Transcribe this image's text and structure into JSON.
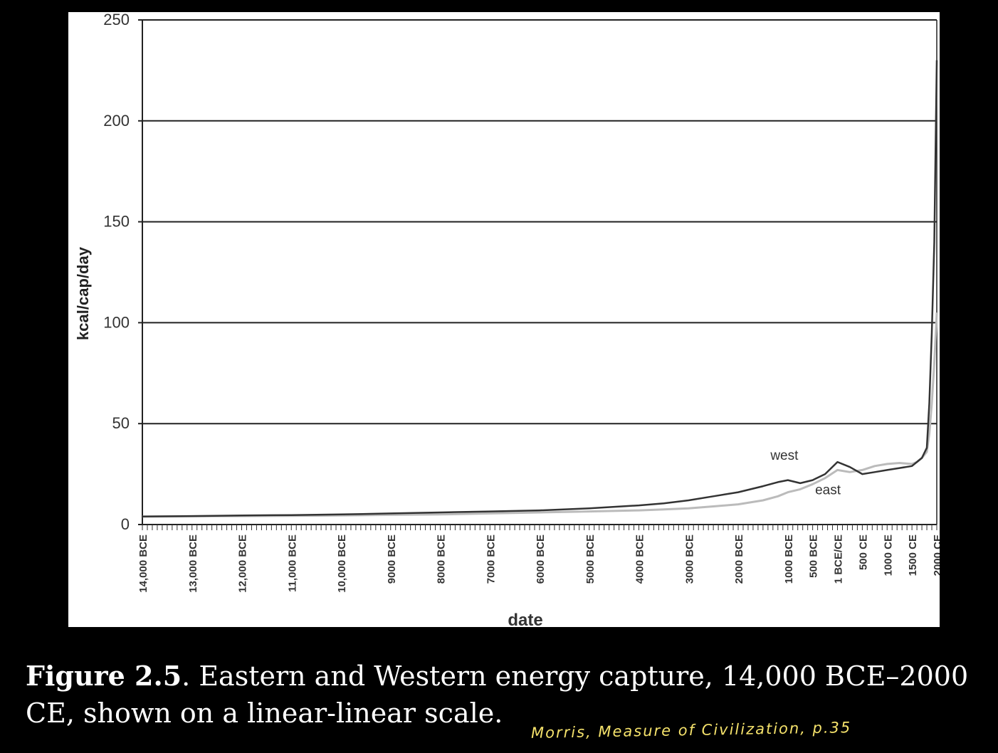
{
  "chart_data": {
    "type": "line",
    "title": "",
    "xlabel": "date",
    "ylabel": "kcal/cap/day",
    "ylim": [
      0,
      250
    ],
    "xlim": [
      -14000,
      2000
    ],
    "yticks": [
      0,
      50,
      100,
      150,
      200,
      250
    ],
    "x_tick_values": [
      -14000,
      -13000,
      -12000,
      -11000,
      -10000,
      -9000,
      -8000,
      -7000,
      -6000,
      -5000,
      -4000,
      -3000,
      -2000,
      -1000,
      -500,
      0,
      500,
      1000,
      1500,
      2000
    ],
    "x_tick_labels": [
      "14,000 BCE",
      "13,000 BCE",
      "12,000 BCE",
      "11,000 BCE",
      "10,000 BCE",
      "9000 BCE",
      "8000 BCE",
      "7000 BCE",
      "6000 BCE",
      "5000 BCE",
      "4000 BCE",
      "3000 BCE",
      "2000 BCE",
      "1000 BCE",
      "500 BCE",
      "1 BCE/CE",
      "500 CE",
      "1000 CE",
      "1500 CE",
      "2000 CE"
    ],
    "grid": "horizontal",
    "series": [
      {
        "name": "west",
        "color": "#333333",
        "x": [
          -14000,
          -13000,
          -12000,
          -11000,
          -10000,
          -9000,
          -8000,
          -7000,
          -6000,
          -5000,
          -4000,
          -3500,
          -3000,
          -2500,
          -2000,
          -1500,
          -1200,
          -1000,
          -750,
          -500,
          -250,
          0,
          250,
          500,
          750,
          1000,
          1250,
          1500,
          1600,
          1700,
          1800,
          1850,
          1900,
          1950,
          2000
        ],
        "y": [
          4,
          4.2,
          4.5,
          4.7,
          5,
          5.5,
          6,
          6.5,
          7,
          8,
          9.5,
          10.5,
          12,
          14,
          16,
          19,
          21,
          22,
          20.5,
          22,
          25,
          31,
          28.5,
          25,
          26,
          27,
          28,
          29,
          31,
          33,
          38,
          60,
          95,
          140,
          230
        ]
      },
      {
        "name": "east",
        "color": "#bbbbbb",
        "x": [
          -14000,
          -13000,
          -12000,
          -11000,
          -10000,
          -9000,
          -8000,
          -7000,
          -6000,
          -5000,
          -4000,
          -3500,
          -3000,
          -2500,
          -2000,
          -1500,
          -1200,
          -1000,
          -750,
          -500,
          -250,
          0,
          250,
          500,
          750,
          1000,
          1250,
          1500,
          1600,
          1700,
          1800,
          1850,
          1900,
          1950,
          2000
        ],
        "y": [
          4,
          4.1,
          4.2,
          4.3,
          4.5,
          4.8,
          5,
          5.5,
          6,
          6.5,
          7,
          7.5,
          8,
          9,
          10,
          12,
          14,
          16,
          17.5,
          20,
          23,
          27,
          26,
          27,
          29,
          30,
          30.5,
          30,
          31,
          33,
          36,
          45,
          60,
          80,
          105
        ]
      }
    ],
    "annotations": [
      {
        "text": "west",
        "x": -1350,
        "y": 32
      },
      {
        "text": "east",
        "x": -450,
        "y": 15
      }
    ]
  },
  "caption": {
    "figure_number": "Figure 2.5",
    "text": ". Eastern and Western energy capture, 14,000 BCE–2000 CE, shown on a linear-linear scale."
  },
  "handwritten_note": "Morris, Measure of Civilization, p.35"
}
